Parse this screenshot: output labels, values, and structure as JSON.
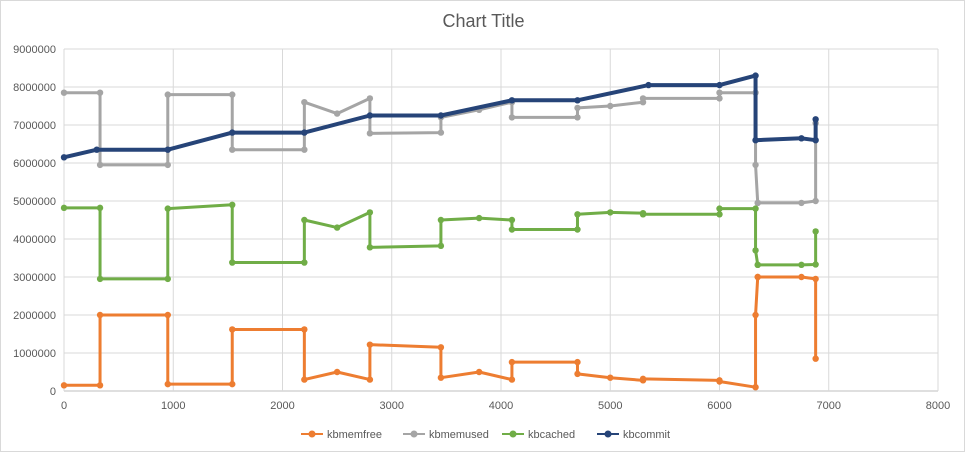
{
  "chart_data": {
    "type": "line",
    "title": "Chart Title",
    "xlim": [
      0,
      8000
    ],
    "ylim": [
      0,
      9000000
    ],
    "x_ticks": [
      "0",
      "1000",
      "2000",
      "3000",
      "4000",
      "5000",
      "6000",
      "7000",
      "8000"
    ],
    "y_ticks": [
      "0",
      "1000000",
      "2000000",
      "3000000",
      "4000000",
      "5000000",
      "6000000",
      "7000000",
      "8000000",
      "9000000"
    ],
    "grid": true,
    "legend_position": "bottom",
    "series": [
      {
        "name": "kbmemfree",
        "color": "#ED7D31",
        "x": [
          0,
          330,
          330,
          950,
          950,
          1540,
          1540,
          2200,
          2200,
          2500,
          2800,
          2800,
          3450,
          3450,
          3800,
          4100,
          4100,
          4700,
          4700,
          5000,
          5300,
          5300,
          6000,
          6000,
          6330,
          6330,
          6350,
          6350,
          6750,
          6880,
          6880
        ],
        "y": [
          150000,
          150000,
          2000000,
          2000000,
          180000,
          180000,
          1620000,
          1620000,
          300000,
          500000,
          300000,
          1220000,
          1150000,
          350000,
          500000,
          300000,
          760000,
          760000,
          450000,
          350000,
          280000,
          320000,
          280000,
          250000,
          100000,
          2000000,
          3000000,
          3000000,
          3000000,
          2950000,
          850000
        ]
      },
      {
        "name": "kbmemused",
        "color": "#A5A5A5",
        "x": [
          0,
          330,
          330,
          950,
          950,
          1540,
          1540,
          2200,
          2200,
          2500,
          2800,
          2800,
          3450,
          3450,
          3800,
          4100,
          4100,
          4700,
          4700,
          5000,
          5300,
          5300,
          6000,
          6000,
          6330,
          6330,
          6350,
          6350,
          6750,
          6880,
          6880
        ],
        "y": [
          7850000,
          7850000,
          5950000,
          5950000,
          7800000,
          7800000,
          6350000,
          6350000,
          7600000,
          7300000,
          7700000,
          6780000,
          6800000,
          7200000,
          7400000,
          7600000,
          7200000,
          7200000,
          7450000,
          7500000,
          7600000,
          7700000,
          7700000,
          7850000,
          7850000,
          5950000,
          4950000,
          4950000,
          4950000,
          5000000,
          7050000
        ]
      },
      {
        "name": "kbcached",
        "color": "#70AD47",
        "x": [
          0,
          330,
          330,
          950,
          950,
          1540,
          1540,
          2200,
          2200,
          2500,
          2800,
          2800,
          3450,
          3450,
          3800,
          4100,
          4100,
          4700,
          4700,
          5000,
          5300,
          5300,
          6000,
          6000,
          6330,
          6330,
          6350,
          6350,
          6750,
          6880,
          6880
        ],
        "y": [
          4820000,
          4820000,
          2950000,
          2950000,
          4800000,
          4900000,
          3380000,
          3380000,
          4500000,
          4300000,
          4700000,
          3780000,
          3820000,
          4500000,
          4550000,
          4500000,
          4250000,
          4250000,
          4650000,
          4700000,
          4680000,
          4650000,
          4650000,
          4800000,
          4800000,
          3700000,
          3320000,
          3320000,
          3320000,
          3330000,
          4200000
        ]
      },
      {
        "name": "kbcommit",
        "color": "#264478",
        "x": [
          0,
          300,
          950,
          1540,
          2200,
          2800,
          3450,
          4100,
          4700,
          5350,
          6000,
          6330,
          6330,
          6750,
          6880,
          6880
        ],
        "y": [
          6150000,
          6350000,
          6350000,
          6800000,
          6800000,
          7250000,
          7250000,
          7650000,
          7650000,
          8050000,
          8050000,
          8300000,
          6600000,
          6650000,
          6600000,
          7150000
        ]
      }
    ]
  }
}
